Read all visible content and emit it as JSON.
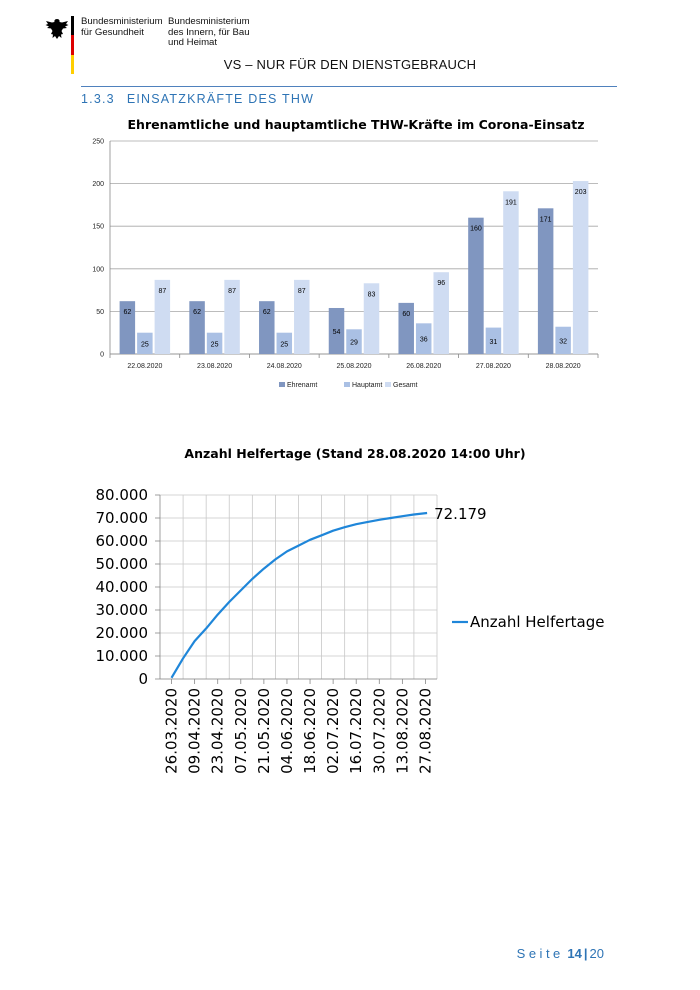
{
  "header": {
    "ministry_left_line1": "Bundesministerium",
    "ministry_left_line2": "für Gesundheit",
    "ministry_right_line1": "Bundesministerium",
    "ministry_right_line2": "des Innern, für Bau",
    "ministry_right_line3": "und Heimat",
    "classification": "VS – NUR FÜR DEN DIENSTGEBRAUCH",
    "flag_colors": [
      "#000000",
      "#dd0000",
      "#ffce00"
    ],
    "emblem_icon": "federal-eagle-icon"
  },
  "section": {
    "number": "1.3.3",
    "title": "EINSATZKRÄFTE DES THW",
    "accent_color": "#2e74b5"
  },
  "chart_data": [
    {
      "type": "bar",
      "title": "Ehrenamtliche und hauptamtliche THW-Kräfte im Corona-Einsatz",
      "xlabel": "",
      "ylabel": "",
      "ylim": [
        0,
        250
      ],
      "yticks": [
        "0",
        "50",
        "100",
        "150",
        "200",
        "250"
      ],
      "categories": [
        "22.08.2020",
        "23.08.2020",
        "24.08.2020",
        "25.08.2020",
        "26.08.2020",
        "27.08.2020",
        "28.08.2020"
      ],
      "series": [
        {
          "name": "Ehrenamt",
          "color": "#8096c0",
          "values": [
            62,
            62,
            62,
            54,
            60,
            160,
            171
          ]
        },
        {
          "name": "Hauptamt",
          "color": "#aac0e4",
          "values": [
            25,
            25,
            25,
            29,
            36,
            31,
            32
          ]
        },
        {
          "name": "Gesamt",
          "color": "#cfdcf2",
          "values": [
            87,
            87,
            87,
            83,
            96,
            191,
            203
          ]
        }
      ],
      "grid": true,
      "legend_position": "bottom"
    },
    {
      "type": "line",
      "title": "Anzahl Helfertage (Stand 28.08.2020 14:00 Uhr)",
      "xlabel": "",
      "ylabel": "",
      "ylim": [
        0,
        80000
      ],
      "yticks": [
        "0",
        "10.000",
        "20.000",
        "30.000",
        "40.000",
        "50.000",
        "60.000",
        "70.000",
        "80.000"
      ],
      "xticks": [
        "26.03.2020",
        "09.04.2020",
        "23.04.2020",
        "07.05.2020",
        "21.05.2020",
        "04.06.2020",
        "18.06.2020",
        "02.07.2020",
        "16.07.2020",
        "30.07.2020",
        "13.08.2020",
        "27.08.2020"
      ],
      "series": [
        {
          "name": "Anzahl Helfertage",
          "color": "#1f86d9",
          "x": [
            "2020-03-26",
            "2020-04-02",
            "2020-04-09",
            "2020-04-16",
            "2020-04-23",
            "2020-04-30",
            "2020-05-07",
            "2020-05-14",
            "2020-05-21",
            "2020-05-28",
            "2020-06-04",
            "2020-06-11",
            "2020-06-18",
            "2020-06-25",
            "2020-07-02",
            "2020-07-09",
            "2020-07-16",
            "2020-07-23",
            "2020-07-30",
            "2020-08-06",
            "2020-08-13",
            "2020-08-20",
            "2020-08-28"
          ],
          "values": [
            500,
            9000,
            16500,
            22000,
            28000,
            33500,
            38500,
            43500,
            48000,
            52000,
            55500,
            58000,
            60500,
            62500,
            64500,
            66000,
            67300,
            68300,
            69200,
            70000,
            70800,
            71500,
            72179
          ]
        }
      ],
      "end_label": "72.179",
      "grid": true,
      "legend_position": "right"
    }
  ],
  "footer": {
    "seite_label": "Seite",
    "page": "14",
    "separator": "|",
    "total": "20"
  }
}
